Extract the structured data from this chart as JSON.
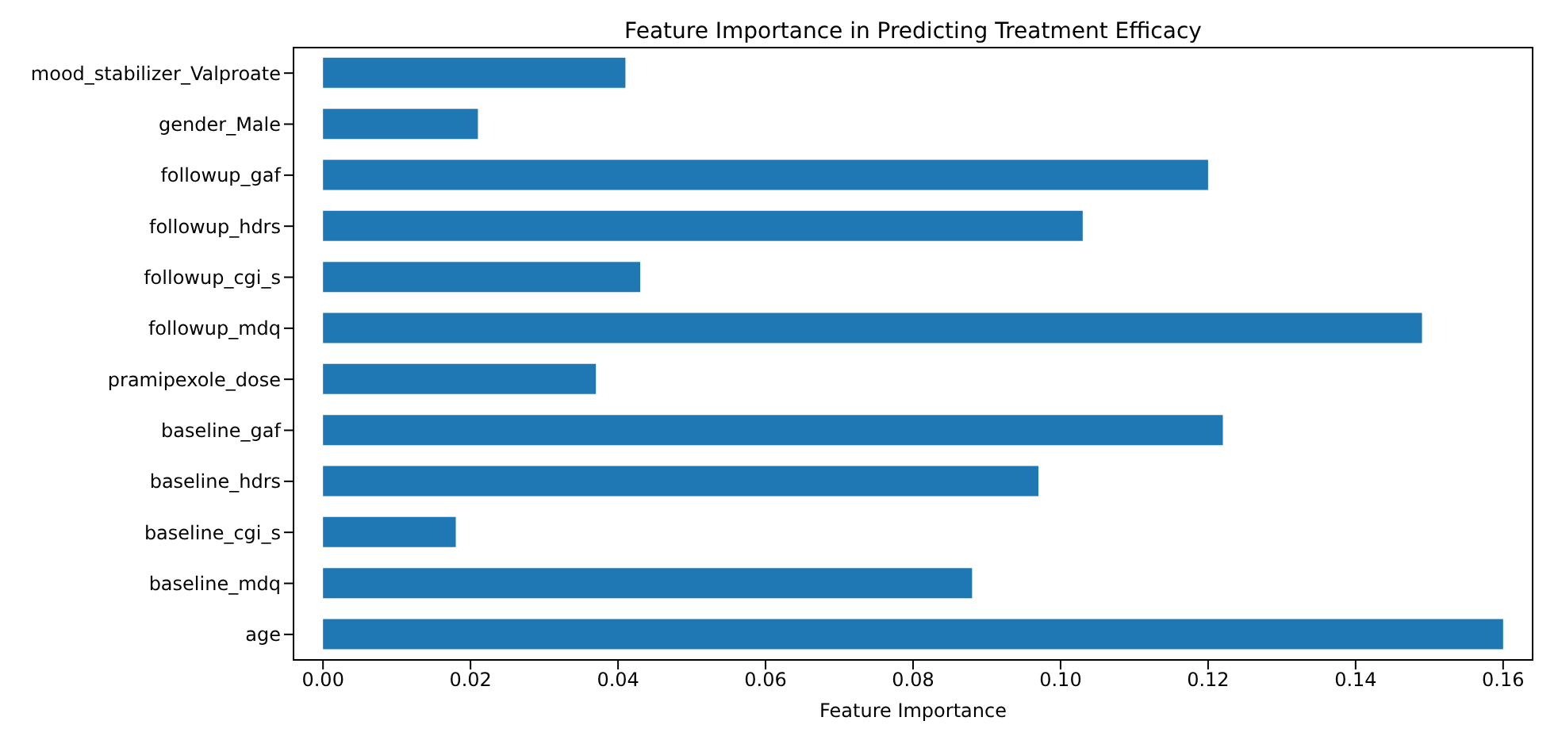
{
  "chart_data": {
    "type": "bar",
    "orientation": "horizontal",
    "title": "Feature Importance in Predicting Treatment Efficacy",
    "xlabel": "Feature Importance",
    "categories": [
      "mood_stabilizer_Valproate",
      "gender_Male",
      "followup_gaf",
      "followup_hdrs",
      "followup_cgi_s",
      "followup_mdq",
      "pramipexole_dose",
      "baseline_gaf",
      "baseline_hdrs",
      "baseline_cgi_s",
      "baseline_mdq",
      "age"
    ],
    "values": [
      0.041,
      0.021,
      0.12,
      0.103,
      0.043,
      0.149,
      0.037,
      0.122,
      0.097,
      0.018,
      0.088,
      0.16
    ],
    "color": "#1f77b4",
    "xlim": [
      -0.004,
      0.164
    ],
    "xticks": [
      {
        "value": 0,
        "label": "0.00"
      },
      {
        "value": 0.02,
        "label": "0.02"
      },
      {
        "value": 0.04,
        "label": "0.04"
      },
      {
        "value": 0.06,
        "label": "0.06"
      },
      {
        "value": 0.08,
        "label": "0.08"
      },
      {
        "value": 0.1,
        "label": "0.10"
      },
      {
        "value": 0.12,
        "label": "0.12"
      },
      {
        "value": 0.14,
        "label": "0.14"
      },
      {
        "value": 0.16,
        "label": "0.16"
      }
    ],
    "grid": false
  }
}
